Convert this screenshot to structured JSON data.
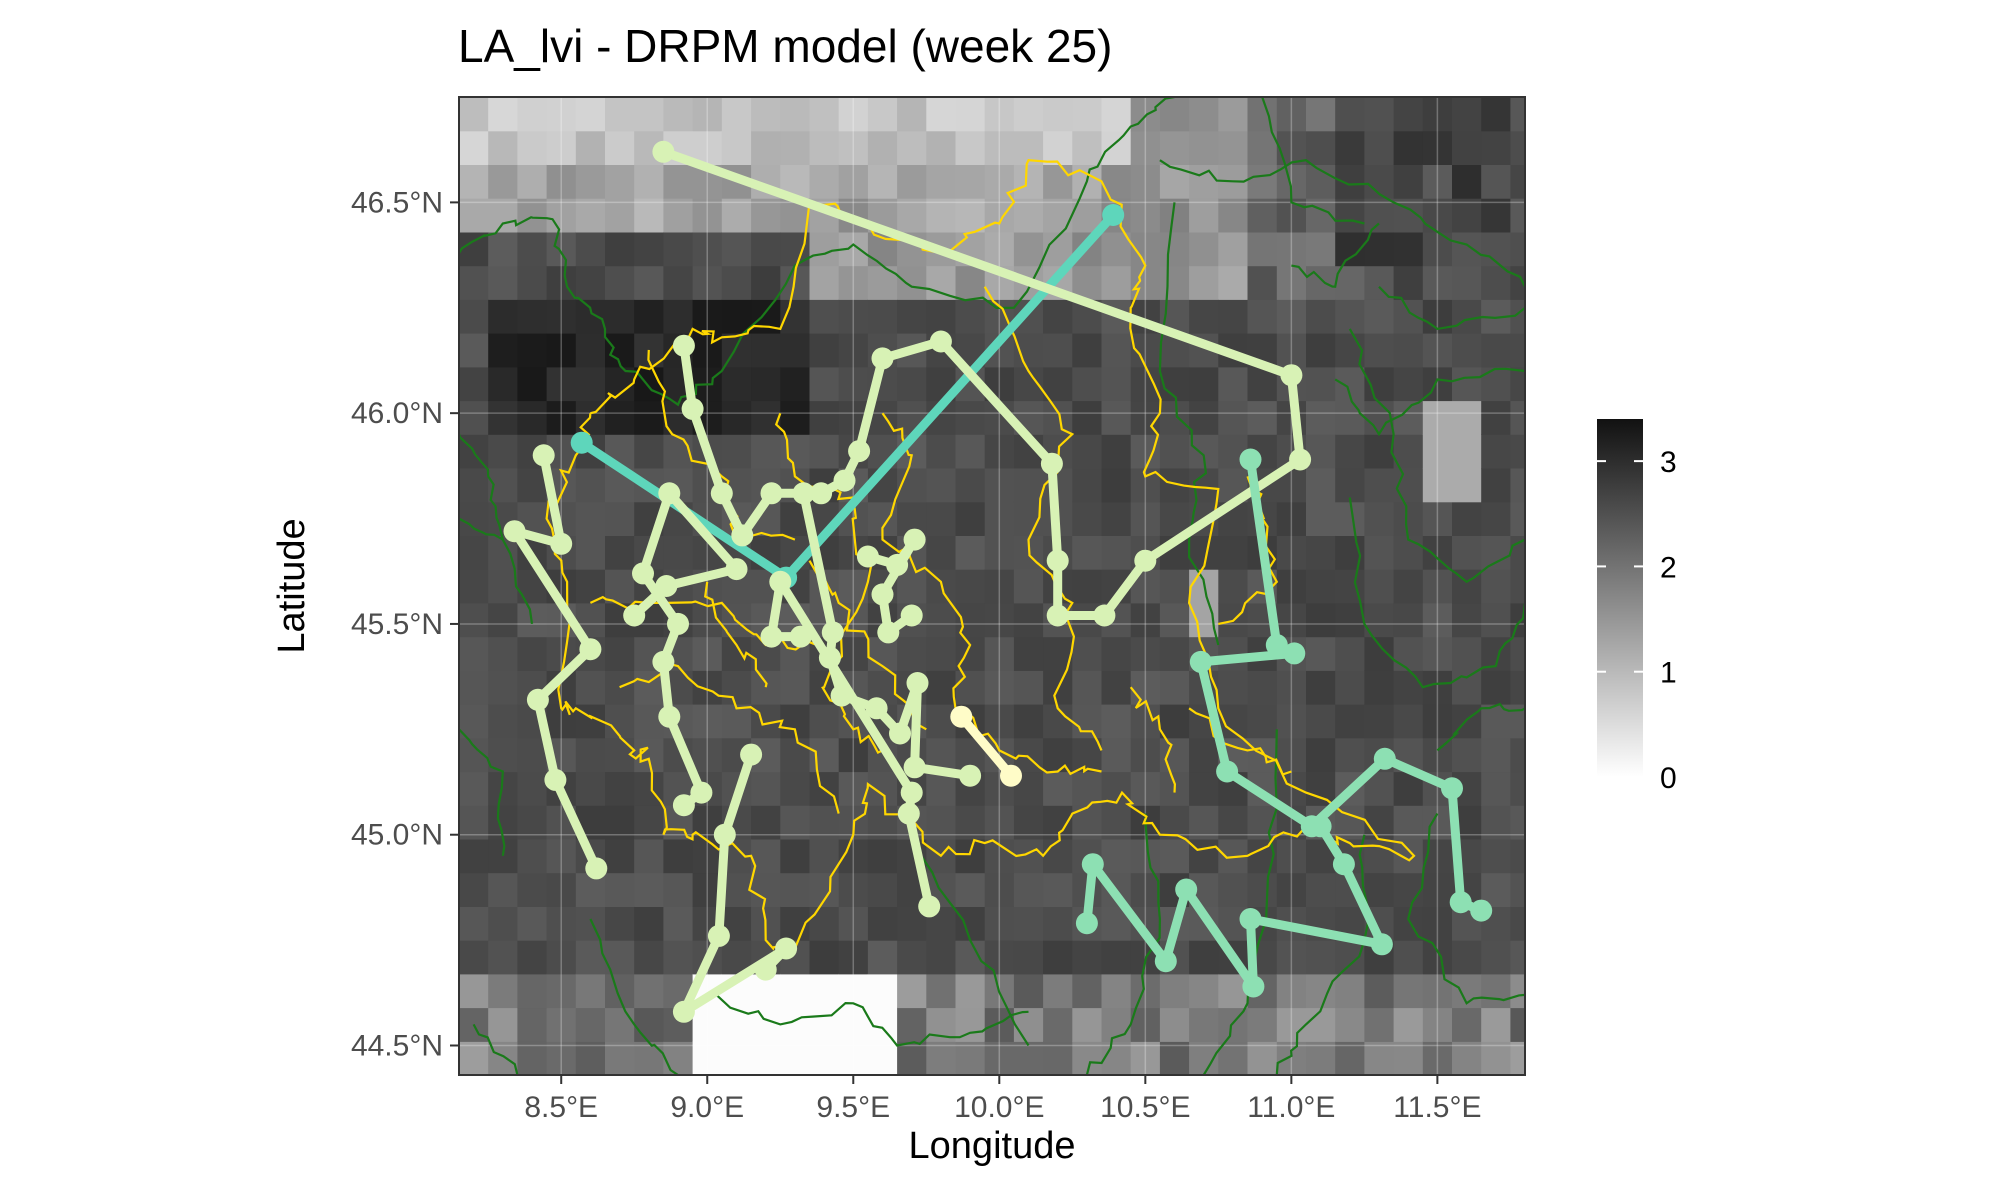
{
  "chart_data": {
    "type": "map",
    "title": "LA_lvi - DRPM model (week 25)",
    "xlabel": "Longitude",
    "ylabel": "Latitude",
    "xlim": [
      8.15,
      11.8
    ],
    "ylim": [
      44.43,
      46.75
    ],
    "x_ticks": [
      {
        "value": 8.5,
        "label": "8.5°E"
      },
      {
        "value": 9.0,
        "label": "9.0°E"
      },
      {
        "value": 9.5,
        "label": "9.5°E"
      },
      {
        "value": 10.0,
        "label": "10.0°E"
      },
      {
        "value": 10.5,
        "label": "10.5°E"
      },
      {
        "value": 11.0,
        "label": "11.0°E"
      },
      {
        "value": 11.5,
        "label": "11.5°E"
      }
    ],
    "y_ticks": [
      {
        "value": 44.5,
        "label": "44.5°N"
      },
      {
        "value": 45.0,
        "label": "45.0°N"
      },
      {
        "value": 45.5,
        "label": "45.5°N"
      },
      {
        "value": 46.0,
        "label": "46.0°N"
      },
      {
        "value": 46.5,
        "label": "46.5°N"
      }
    ],
    "raster": {
      "lon_min": 8.15,
      "lat_min": 44.43,
      "cell_lon": 0.1,
      "cell_lat": 0.08,
      "scale_min": 0,
      "scale_max": 3.4,
      "colors": {
        "low": "#ffffff",
        "high": "#111111"
      }
    },
    "legend": {
      "title": "",
      "position": "right",
      "labels": [
        {
          "value": 0,
          "label": "0"
        },
        {
          "value": 1,
          "label": "1"
        },
        {
          "value": 2,
          "label": "2"
        },
        {
          "value": 3,
          "label": "3"
        }
      ]
    },
    "colors": {
      "boundary_region": "#ffd700",
      "boundary_country": "#1a7a1a",
      "cluster_light": "#d8f2b5",
      "cluster_teal": "#5ed6bb",
      "cluster_mint": "#8de0b3",
      "cluster_yellow": "#fffcc8"
    },
    "clusters": [
      {
        "color_key": "cluster_teal",
        "points": [
          [
            8.57,
            45.93
          ],
          [
            9.27,
            45.61
          ],
          [
            10.39,
            46.47
          ]
        ]
      },
      {
        "color_key": "cluster_light",
        "points": [
          [
            8.85,
            46.62
          ],
          [
            11.0,
            46.09
          ],
          [
            11.03,
            45.89
          ],
          [
            10.5,
            45.65
          ],
          [
            10.36,
            45.52
          ],
          [
            10.2,
            45.52
          ],
          [
            10.2,
            45.65
          ],
          [
            10.18,
            45.88
          ],
          [
            9.8,
            46.17
          ],
          [
            9.6,
            46.13
          ],
          [
            9.52,
            45.91
          ],
          [
            9.47,
            45.84
          ],
          [
            9.39,
            45.81
          ],
          [
            9.22,
            45.81
          ],
          [
            9.12,
            45.71
          ],
          [
            9.05,
            45.81
          ],
          [
            8.95,
            46.01
          ],
          [
            8.92,
            46.16
          ]
        ]
      },
      {
        "color_key": "cluster_light",
        "points": [
          [
            8.44,
            45.9
          ],
          [
            8.5,
            45.69
          ],
          [
            8.34,
            45.72
          ],
          [
            8.6,
            45.44
          ],
          [
            8.42,
            45.32
          ],
          [
            8.48,
            45.13
          ],
          [
            8.62,
            44.92
          ]
        ]
      },
      {
        "color_key": "cluster_light",
        "points": [
          [
            8.75,
            45.52
          ],
          [
            8.86,
            45.59
          ],
          [
            9.1,
            45.63
          ],
          [
            8.87,
            45.81
          ],
          [
            8.78,
            45.62
          ],
          [
            8.9,
            45.5
          ],
          [
            8.85,
            45.41
          ],
          [
            8.87,
            45.28
          ],
          [
            8.98,
            45.1
          ],
          [
            8.92,
            45.07
          ]
        ]
      },
      {
        "color_key": "cluster_light",
        "points": [
          [
            9.33,
            45.81
          ],
          [
            9.43,
            45.48
          ],
          [
            9.42,
            45.42
          ],
          [
            9.46,
            45.33
          ],
          [
            9.58,
            45.3
          ],
          [
            9.66,
            45.24
          ],
          [
            9.72,
            45.36
          ],
          [
            9.71,
            45.16
          ],
          [
            9.9,
            45.14
          ]
        ]
      },
      {
        "color_key": "cluster_light",
        "points": [
          [
            9.55,
            45.66
          ],
          [
            9.65,
            45.64
          ],
          [
            9.71,
            45.7
          ],
          [
            9.6,
            45.57
          ],
          [
            9.62,
            45.48
          ],
          [
            9.7,
            45.52
          ]
        ]
      },
      {
        "color_key": "cluster_light",
        "points": [
          [
            9.15,
            45.19
          ],
          [
            9.06,
            45.0
          ],
          [
            9.04,
            44.76
          ],
          [
            8.92,
            44.58
          ],
          [
            9.27,
            44.73
          ],
          [
            9.2,
            44.68
          ]
        ]
      },
      {
        "color_key": "cluster_light",
        "points": [
          [
            9.32,
            45.47
          ],
          [
            9.22,
            45.47
          ],
          [
            9.25,
            45.6
          ],
          [
            9.7,
            45.1
          ],
          [
            9.69,
            45.05
          ],
          [
            9.76,
            44.83
          ]
        ]
      },
      {
        "color_key": "cluster_mint",
        "points": [
          [
            10.86,
            45.89
          ],
          [
            10.95,
            45.45
          ],
          [
            11.01,
            45.43
          ],
          [
            10.69,
            45.41
          ],
          [
            10.78,
            45.15
          ],
          [
            11.07,
            45.02
          ],
          [
            11.32,
            45.18
          ],
          [
            11.55,
            45.11
          ],
          [
            11.58,
            44.84
          ],
          [
            11.65,
            44.82
          ]
        ]
      },
      {
        "color_key": "cluster_mint",
        "points": [
          [
            11.1,
            45.02
          ],
          [
            11.18,
            44.93
          ],
          [
            11.31,
            44.74
          ],
          [
            10.86,
            44.8
          ],
          [
            10.87,
            44.64
          ],
          [
            10.64,
            44.87
          ],
          [
            10.57,
            44.7
          ],
          [
            10.32,
            44.93
          ],
          [
            10.3,
            44.79
          ]
        ]
      },
      {
        "color_key": "cluster_yellow",
        "points": [
          [
            9.87,
            45.28
          ],
          [
            10.04,
            45.14
          ]
        ]
      }
    ]
  }
}
